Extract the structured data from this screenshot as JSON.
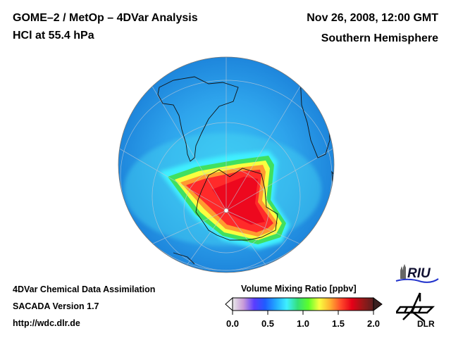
{
  "header": {
    "title": "GOME–2 / MetOp – 4DVar Analysis",
    "subtitle": "HCl at 55.4 hPa",
    "date": "Nov 26, 2008, 12:00 GMT",
    "region": "Southern Hemisphere"
  },
  "footer": {
    "line1": "4DVar Chemical Data Assimilation",
    "line2": "SACADA Version 1.7",
    "line3": "http://wdc.dlr.de"
  },
  "map": {
    "projection": "orthographic",
    "center": "South Pole",
    "variable": "HCl volume mixing ratio",
    "pressure_level": "55.4 hPa",
    "background_level_ppbv": 0.5,
    "vortex_peak_ppbv": 1.8,
    "features": [
      "South America",
      "Antarctica",
      "Africa (southern tip)",
      "Australia/New Zealand edge"
    ]
  },
  "colorbar": {
    "title": "Volume Mixing Ratio [ppbv]",
    "min": 0.0,
    "max": 2.0,
    "ticks": [
      "0.0",
      "0.5",
      "1.0",
      "1.5",
      "2.0"
    ],
    "colors": [
      "#e8e8e8",
      "#c89bd8",
      "#5a3cff",
      "#1f5cff",
      "#22aaff",
      "#3ff0ff",
      "#34e07a",
      "#5cff2a",
      "#f8ff40",
      "#ffb030",
      "#ff4a2a",
      "#e60018",
      "#9a1818",
      "#5a2020"
    ]
  },
  "logos": {
    "riu": "RIU",
    "dlr": "DLR"
  }
}
